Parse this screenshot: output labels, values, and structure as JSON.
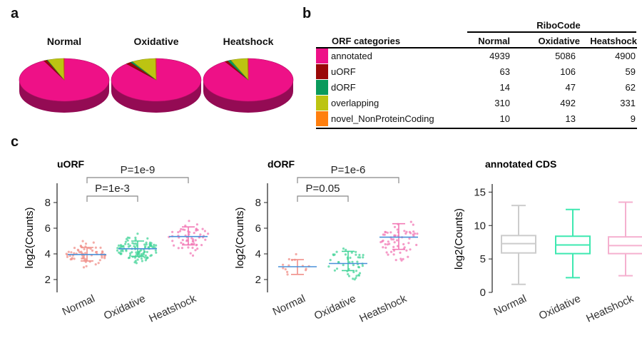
{
  "panels": {
    "a": "a",
    "b": "b",
    "c": "c"
  },
  "pies": [
    {
      "title": "Normal",
      "slices": [
        {
          "category": "annotated",
          "value": 4939
        },
        {
          "category": "uORF",
          "value": 63
        },
        {
          "category": "dORF",
          "value": 14
        },
        {
          "category": "overlapping",
          "value": 310
        },
        {
          "category": "novel_NonProteinCoding",
          "value": 10
        }
      ]
    },
    {
      "title": "Oxidative",
      "slices": [
        {
          "category": "annotated",
          "value": 5086
        },
        {
          "category": "uORF",
          "value": 106
        },
        {
          "category": "dORF",
          "value": 47
        },
        {
          "category": "overlapping",
          "value": 492
        },
        {
          "category": "novel_NonProteinCoding",
          "value": 13
        }
      ]
    },
    {
      "title": "Heatshock",
      "slices": [
        {
          "category": "annotated",
          "value": 4900
        },
        {
          "category": "uORF",
          "value": 59
        },
        {
          "category": "dORF",
          "value": 62
        },
        {
          "category": "overlapping",
          "value": 331
        },
        {
          "category": "novel_NonProteinCoding",
          "value": 9
        }
      ]
    }
  ],
  "table": {
    "group_header": "RiboCode",
    "category_header": "ORF categories",
    "columns": [
      "Normal",
      "Oxidative",
      "Heatshock"
    ],
    "rows": [
      {
        "label": "annotated",
        "color": "#ee1187",
        "values": [
          "4939",
          "5086",
          "4900"
        ]
      },
      {
        "label": "uORF",
        "color": "#9a0808",
        "values": [
          "63",
          "106",
          "59"
        ]
      },
      {
        "label": "dORF",
        "color": "#0a9a5c",
        "values": [
          "14",
          "47",
          "62"
        ]
      },
      {
        "label": "overlapping",
        "color": "#bcc412",
        "values": [
          "310",
          "492",
          "331"
        ]
      },
      {
        "label": "novel_NonProteinCoding",
        "color": "#ff7f0e",
        "values": [
          "10",
          "13",
          "9"
        ]
      }
    ]
  },
  "colors": {
    "normal": "#f0908a",
    "oxidative": "#45d49a",
    "heatshock": "#f27ab6",
    "median_line": "#4a90d9",
    "box_normal": "#cccccc",
    "box_oxidative": "#3ee8b0",
    "box_heatshock": "#f5b0cf"
  },
  "chart_data": [
    {
      "type": "scatter",
      "title": "uORF",
      "ylabel": "log2(Counts)",
      "categories": [
        "Normal",
        "Oxidative",
        "Heatshock"
      ],
      "yticks": [
        "2",
        "4",
        "6",
        "8"
      ],
      "ylim": [
        1,
        9.5
      ],
      "summary": [
        {
          "category": "Normal",
          "mean": 3.95,
          "sd_low": 3.45,
          "sd_high": 4.5,
          "n": 63
        },
        {
          "category": "Oxidative",
          "mean": 4.4,
          "sd_low": 3.8,
          "sd_high": 5.0,
          "n": 106
        },
        {
          "category": "Heatshock",
          "mean": 5.35,
          "sd_low": 4.7,
          "sd_high": 6.1,
          "n": 59
        }
      ],
      "annotations": [
        {
          "text": "P=1e-3",
          "from": "Normal",
          "to": "Oxidative"
        },
        {
          "text": "P=1e-9",
          "from": "Normal",
          "to": "Heatshock"
        }
      ]
    },
    {
      "type": "scatter",
      "title": "dORF",
      "ylabel": "log2(Counts)",
      "categories": [
        "Normal",
        "Oxidative",
        "Heatshock"
      ],
      "yticks": [
        "2",
        "4",
        "6",
        "8"
      ],
      "ylim": [
        1,
        9.5
      ],
      "summary": [
        {
          "category": "Normal",
          "mean": 3.0,
          "sd_low": 2.4,
          "sd_high": 3.55,
          "n": 14
        },
        {
          "category": "Oxidative",
          "mean": 3.25,
          "sd_low": 2.7,
          "sd_high": 4.2,
          "n": 47
        },
        {
          "category": "Heatshock",
          "mean": 5.3,
          "sd_low": 4.35,
          "sd_high": 6.35,
          "n": 62
        }
      ],
      "annotations": [
        {
          "text": "P=0.05",
          "from": "Normal",
          "to": "Oxidative"
        },
        {
          "text": "P=1e-6",
          "from": "Normal",
          "to": "Heatshock"
        }
      ]
    },
    {
      "type": "box",
      "title": "annotated CDS",
      "ylabel": "log2(Counts)",
      "categories": [
        "Normal",
        "Oxidative",
        "Heatshock"
      ],
      "yticks": [
        "0",
        "5",
        "10",
        "15"
      ],
      "ylim": [
        0,
        16
      ],
      "boxes": [
        {
          "category": "Normal",
          "min": 1.2,
          "q1": 5.9,
          "median": 7.3,
          "q3": 8.5,
          "max": 13.0
        },
        {
          "category": "Oxidative",
          "min": 2.2,
          "q1": 5.8,
          "median": 7.1,
          "q3": 8.4,
          "max": 12.4
        },
        {
          "category": "Heatshock",
          "min": 2.5,
          "q1": 5.8,
          "median": 7.0,
          "q3": 8.3,
          "max": 13.5
        }
      ]
    }
  ]
}
